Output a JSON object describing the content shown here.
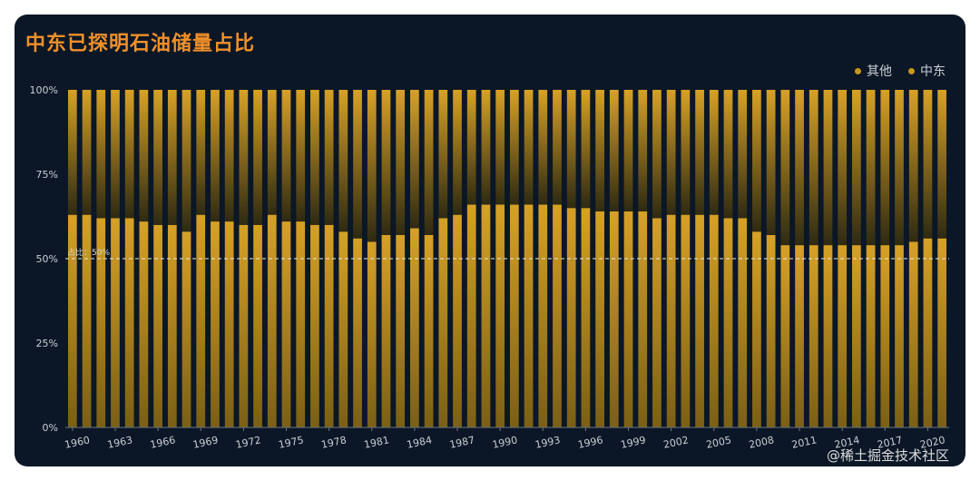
{
  "title": "中东已探明石油储量占比",
  "watermark": "@稀土掘金技术社区",
  "colors": {
    "background": "#0b1726",
    "title": "#f0902a",
    "bar_top": "#d7a126",
    "bar_bottom": "#7a5f15",
    "mid_shade": "#2e2a12"
  },
  "chart_data": {
    "type": "bar",
    "stacked": true,
    "percent": true,
    "title": "中东已探明石油储量占比",
    "legend": [
      "其他",
      "中东"
    ],
    "legend_position": "top-right",
    "x": [
      1960,
      1961,
      1962,
      1963,
      1964,
      1965,
      1966,
      1967,
      1968,
      1969,
      1970,
      1971,
      1972,
      1973,
      1974,
      1975,
      1976,
      1977,
      1978,
      1979,
      1980,
      1981,
      1982,
      1983,
      1984,
      1985,
      1986,
      1987,
      1988,
      1989,
      1990,
      1991,
      1992,
      1993,
      1994,
      1995,
      1996,
      1997,
      1998,
      1999,
      2000,
      2001,
      2002,
      2003,
      2004,
      2005,
      2006,
      2007,
      2008,
      2009,
      2010,
      2011,
      2012,
      2013,
      2014,
      2015,
      2016,
      2017,
      2018,
      2019,
      2020,
      2021
    ],
    "x_tick_labels": [
      "1960",
      "1963",
      "1966",
      "1969",
      "1972",
      "1975",
      "1978",
      "1981",
      "1984",
      "1987",
      "1990",
      "1993",
      "1996",
      "1999",
      "2002",
      "2005",
      "2008",
      "2011",
      "2014",
      "2017",
      "2020"
    ],
    "series": [
      {
        "name": "中东",
        "values": [
          63,
          63,
          62,
          62,
          62,
          61,
          60,
          60,
          58,
          63,
          61,
          61,
          60,
          60,
          63,
          61,
          61,
          60,
          60,
          58,
          56,
          55,
          57,
          57,
          59,
          57,
          62,
          63,
          66,
          66,
          66,
          66,
          66,
          66,
          66,
          65,
          65,
          64,
          64,
          64,
          64,
          62,
          63,
          63,
          63,
          63,
          62,
          62,
          58,
          57,
          54,
          54,
          54,
          54,
          54,
          54,
          54,
          54,
          54,
          55,
          56,
          56
        ]
      },
      {
        "name": "其他",
        "values": [
          37,
          37,
          38,
          38,
          38,
          39,
          40,
          40,
          42,
          37,
          39,
          39,
          40,
          40,
          37,
          39,
          39,
          40,
          40,
          42,
          44,
          45,
          43,
          43,
          41,
          43,
          38,
          37,
          34,
          34,
          34,
          34,
          34,
          34,
          34,
          35,
          35,
          36,
          36,
          36,
          36,
          38,
          37,
          37,
          37,
          37,
          38,
          38,
          42,
          43,
          46,
          46,
          46,
          46,
          46,
          46,
          46,
          46,
          46,
          45,
          44,
          44
        ]
      }
    ],
    "y_ticks": [
      "0%",
      "25%",
      "50%",
      "75%",
      "100%"
    ],
    "ylim": [
      0,
      100
    ],
    "markline": {
      "value": 50,
      "label": "占比：50%"
    },
    "grid": false
  }
}
